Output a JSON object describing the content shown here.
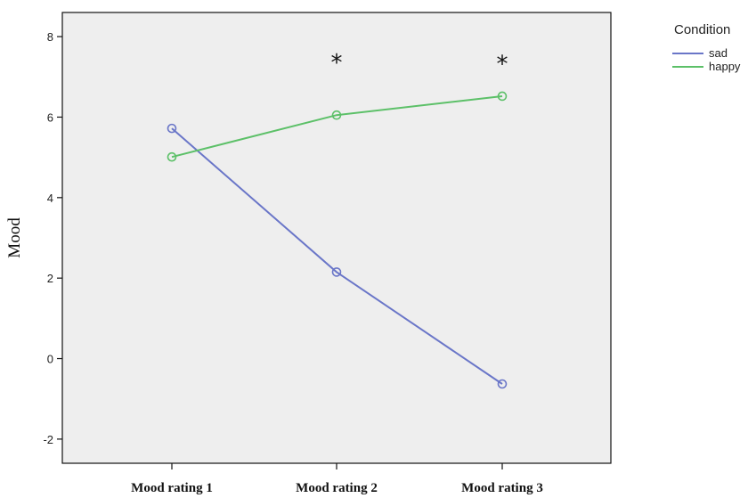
{
  "chart_data": {
    "type": "line",
    "title": "",
    "xlabel": "",
    "ylabel": "Mood",
    "categories": [
      "Mood rating 1",
      "Mood rating 2",
      "Mood rating 3"
    ],
    "ylim": [
      -2.6,
      8.6
    ],
    "yticks": [
      -2,
      0,
      2,
      4,
      6,
      8
    ],
    "grid": false,
    "legend": {
      "title": "Condition",
      "position": "right"
    },
    "series": [
      {
        "name": "sad",
        "values": [
          5.72,
          2.15,
          -0.63
        ],
        "color": "#6a76c8"
      },
      {
        "name": "happy",
        "values": [
          5.01,
          6.05,
          6.52
        ],
        "color": "#5cc068"
      }
    ],
    "annotations": [
      {
        "category": "Mood rating 2",
        "text": "*",
        "y": 7.45
      },
      {
        "category": "Mood rating 3",
        "text": "*",
        "y": 7.42
      }
    ],
    "colors": {
      "plot_background": "#eeeeee",
      "axis": "#111111"
    }
  }
}
